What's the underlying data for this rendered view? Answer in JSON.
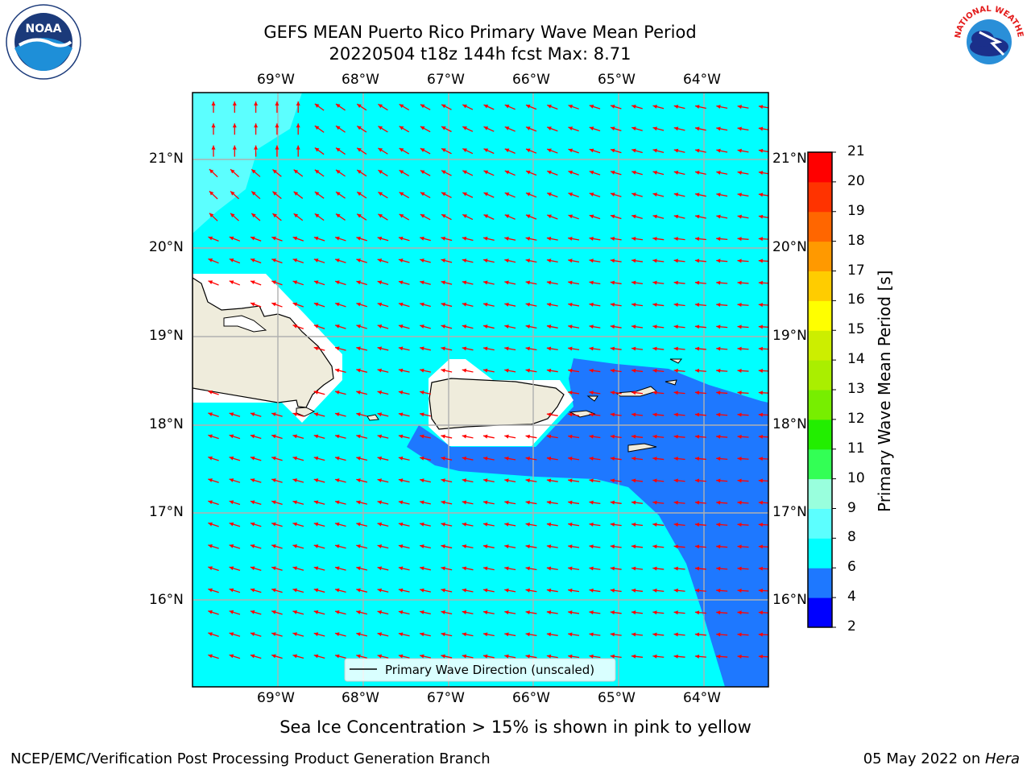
{
  "header": {
    "title_line1": "GEFS MEAN Puerto Rico Primary Wave Mean Period",
    "title_line2": "20220504 t18z 144h fcst   Max: 8.71"
  },
  "logos": {
    "left": {
      "name": "noaa-logo",
      "text": "NOAA"
    },
    "right": {
      "name": "nws-logo",
      "text": "NATIONAL WEATHER SERVICE"
    }
  },
  "map": {
    "lon_labels": [
      "69°W",
      "68°W",
      "67°W",
      "66°W",
      "65°W",
      "64°W"
    ],
    "lat_labels": [
      "21°N",
      "20°N",
      "19°N",
      "18°N",
      "17°N",
      "16°N"
    ],
    "lon_range": [
      -70.0,
      -63.25
    ],
    "lat_range": [
      15.0,
      21.75
    ],
    "vector_color": "#ff0000",
    "land_color": "#efecdc",
    "legend_text": "Primary Wave Direction (unscaled)"
  },
  "colorbar": {
    "label": "Primary Wave Mean Period [s]",
    "ticks": [
      "2",
      "4",
      "6",
      "8",
      "9",
      "10",
      "11",
      "12",
      "13",
      "14",
      "15",
      "16",
      "17",
      "18",
      "19",
      "20",
      "21"
    ],
    "colors": [
      "#0000ff",
      "#1e78ff",
      "#00ffff",
      "#5cffff",
      "#99ffdd",
      "#33ff55",
      "#22ee00",
      "#77ee00",
      "#aaee00",
      "#ccee00",
      "#ffff00",
      "#ffcc00",
      "#ff9900",
      "#ff6600",
      "#ff3300",
      "#ff0000"
    ]
  },
  "note": "Sea Ice Concentration > 15% is shown in pink to yellow",
  "footer": {
    "left": "NCEP/EMC/Verification Post Processing Product Generation Branch",
    "right_date": "05 May 2022 on ",
    "right_host": "Hera"
  }
}
